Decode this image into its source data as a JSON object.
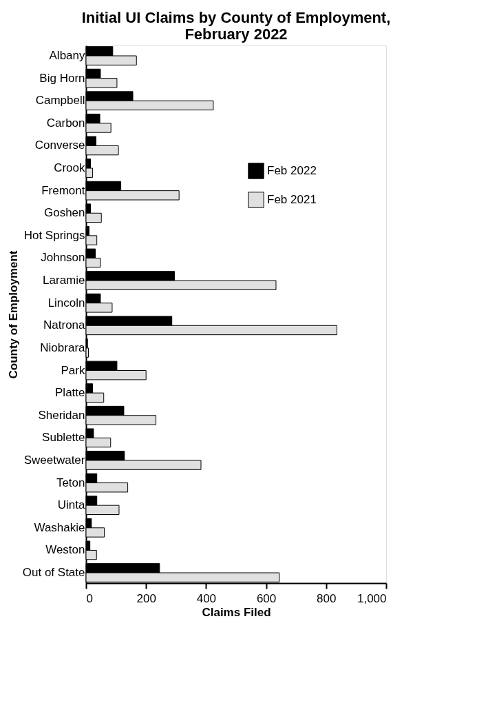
{
  "chart_data": {
    "type": "bar",
    "orientation": "horizontal",
    "title": "Initial UI Claims by County of Employment, February 2022",
    "xlabel": "Claims Filed",
    "ylabel": "County of Employment",
    "categories": [
      "Albany",
      "Big Horn",
      "Campbell",
      "Carbon",
      "Converse",
      "Crook",
      "Fremont",
      "Goshen",
      "Hot Springs",
      "Johnson",
      "Laramie",
      "Lincoln",
      "Natrona",
      "Niobrara",
      "Park",
      "Platte",
      "Sheridan",
      "Sublette",
      "Sweetwater",
      "Teton",
      "Uinta",
      "Washakie",
      "Weston",
      "Out of State"
    ],
    "series": [
      {
        "name": "Feb 2022",
        "color": "#000000",
        "values": [
          89,
          48,
          156,
          46,
          33,
          15,
          116,
          15,
          10,
          31,
          295,
          48,
          286,
          5,
          103,
          22,
          126,
          25,
          128,
          36,
          36,
          18,
          13,
          245
        ]
      },
      {
        "name": "Feb 2021",
        "color": "#e0e0e0",
        "values": [
          168,
          103,
          424,
          83,
          108,
          22,
          310,
          51,
          36,
          48,
          633,
          87,
          836,
          8,
          200,
          59,
          233,
          82,
          383,
          139,
          110,
          61,
          35,
          644
        ]
      }
    ],
    "xlim": [
      0,
      1000
    ],
    "xticks": [
      0,
      200,
      400,
      600,
      {
        "value": 800,
        "label": "800"
      },
      {
        "value": 1000,
        "label": "1,000"
      }
    ],
    "legend": "right",
    "grid": false
  }
}
